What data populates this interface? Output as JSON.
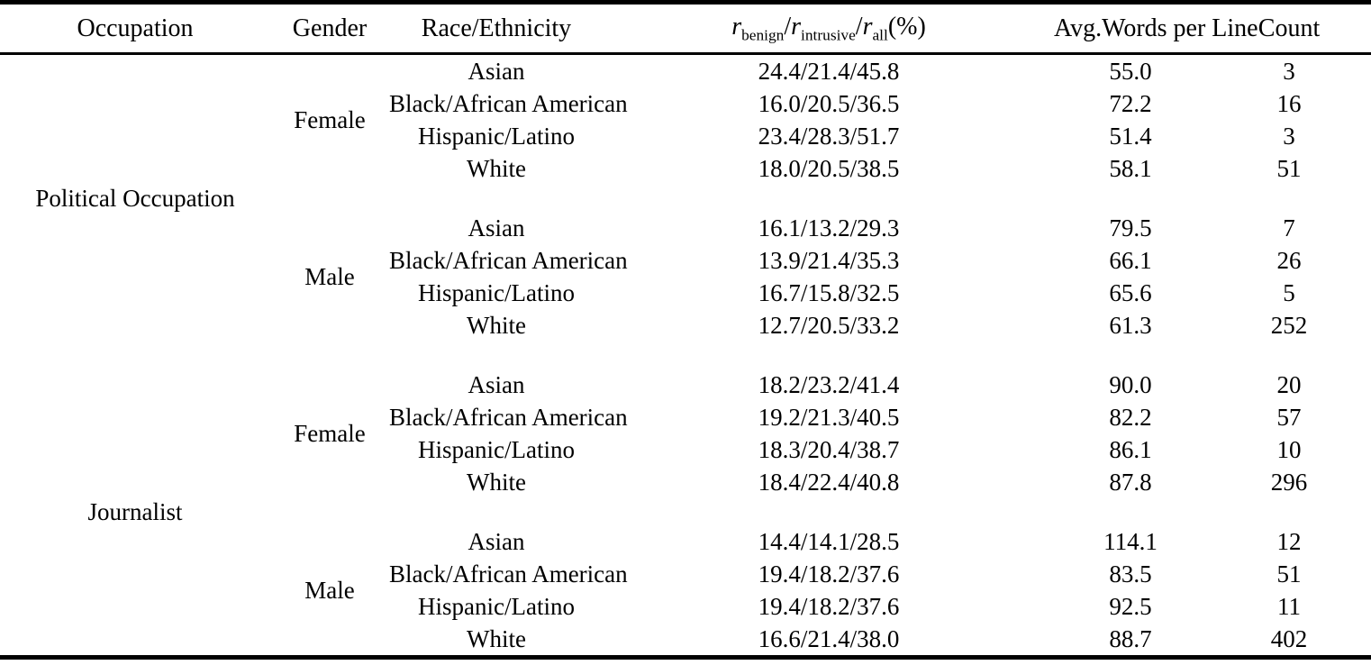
{
  "header": {
    "occupation": "Occupation",
    "gender": "Gender",
    "race": "Race/Ethnicity",
    "ratio_header": {
      "r": "r",
      "benign": "benign",
      "intrusive": "intrusive",
      "all": "all",
      "slash": "/",
      "percent": "(%)"
    },
    "avg_words": "Avg.Words per Line",
    "count": "Count"
  },
  "chart_data": {
    "type": "table",
    "title": "",
    "columns": [
      "Occupation",
      "Gender",
      "Race/Ethnicity",
      "r_benign/r_intrusive/r_all(%)",
      "Avg.Words per Line",
      "Count"
    ],
    "groups": [
      {
        "occupation": "Political Occupation",
        "blocks": [
          {
            "gender": "Female",
            "rows": [
              {
                "race": "Asian",
                "ratio": "24.4/21.4/45.8",
                "avg_words": "55.0",
                "count": "3"
              },
              {
                "race": "Black/African American",
                "ratio": "16.0/20.5/36.5",
                "avg_words": "72.2",
                "count": "16"
              },
              {
                "race": "Hispanic/Latino",
                "ratio": "23.4/28.3/51.7",
                "avg_words": "51.4",
                "count": "3"
              },
              {
                "race": "White",
                "ratio": "18.0/20.5/38.5",
                "avg_words": "58.1",
                "count": "51"
              }
            ]
          },
          {
            "gender": "Male",
            "rows": [
              {
                "race": "Asian",
                "ratio": "16.1/13.2/29.3",
                "avg_words": "79.5",
                "count": "7"
              },
              {
                "race": "Black/African American",
                "ratio": "13.9/21.4/35.3",
                "avg_words": "66.1",
                "count": "26"
              },
              {
                "race": "Hispanic/Latino",
                "ratio": "16.7/15.8/32.5",
                "avg_words": "65.6",
                "count": "5"
              },
              {
                "race": "White",
                "ratio": "12.7/20.5/33.2",
                "avg_words": "61.3",
                "count": "252"
              }
            ]
          }
        ]
      },
      {
        "occupation": "Journalist",
        "blocks": [
          {
            "gender": "Female",
            "rows": [
              {
                "race": "Asian",
                "ratio": "18.2/23.2/41.4",
                "avg_words": "90.0",
                "count": "20"
              },
              {
                "race": "Black/African American",
                "ratio": "19.2/21.3/40.5",
                "avg_words": "82.2",
                "count": "57"
              },
              {
                "race": "Hispanic/Latino",
                "ratio": "18.3/20.4/38.7",
                "avg_words": "86.1",
                "count": "10"
              },
              {
                "race": "White",
                "ratio": "18.4/22.4/40.8",
                "avg_words": "87.8",
                "count": "296"
              }
            ]
          },
          {
            "gender": "Male",
            "rows": [
              {
                "race": "Asian",
                "ratio": "14.4/14.1/28.5",
                "avg_words": "114.1",
                "count": "12"
              },
              {
                "race": "Black/African American",
                "ratio": "19.4/18.2/37.6",
                "avg_words": "83.5",
                "count": "51"
              },
              {
                "race": "Hispanic/Latino",
                "ratio": "19.4/18.2/37.6",
                "avg_words": "92.5",
                "count": "11"
              },
              {
                "race": "White",
                "ratio": "16.6/21.4/38.0",
                "avg_words": "88.7",
                "count": "402"
              }
            ]
          }
        ]
      }
    ]
  }
}
